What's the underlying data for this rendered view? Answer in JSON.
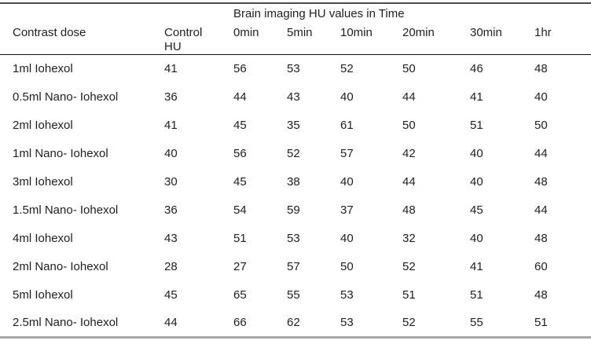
{
  "colors": {
    "text": "#1f1f1f",
    "top_border": "#4d4d4d",
    "header_rule": "#111111",
    "bottom_border": "#a6a6a6",
    "tick": "#7d7d7d",
    "page_bg": "#ffffff"
  },
  "table": {
    "title": "Brain imaging HU values in Time",
    "columns": [
      "Contrast dose",
      "Control\nHU",
      "0min",
      "5min",
      "10min",
      "20min",
      "30min",
      "1hr"
    ],
    "rows": [
      {
        "label": "1ml Iohexol",
        "values": [
          41,
          56,
          53,
          52,
          50,
          46,
          48
        ]
      },
      {
        "label": "0.5ml Nano- Iohexol",
        "values": [
          36,
          44,
          43,
          40,
          44,
          41,
          40
        ]
      },
      {
        "label": "2ml Iohexol",
        "values": [
          41,
          45,
          35,
          61,
          50,
          51,
          50
        ]
      },
      {
        "label": "1ml Nano- Iohexol",
        "values": [
          40,
          56,
          52,
          57,
          42,
          40,
          44
        ]
      },
      {
        "label": "3ml Iohexol",
        "values": [
          30,
          45,
          38,
          40,
          44,
          40,
          48
        ]
      },
      {
        "label": "1.5ml Nano- Iohexol",
        "values": [
          36,
          54,
          59,
          37,
          48,
          45,
          44
        ]
      },
      {
        "label": "4ml Iohexol",
        "values": [
          43,
          51,
          53,
          40,
          32,
          40,
          48
        ]
      },
      {
        "label": "2ml Nano- Iohexol",
        "values": [
          28,
          27,
          57,
          50,
          52,
          41,
          60
        ]
      },
      {
        "label": "5ml Iohexol",
        "values": [
          45,
          65,
          55,
          53,
          51,
          51,
          48
        ]
      },
      {
        "label": "2.5ml Nano- Iohexol",
        "values": [
          44,
          66,
          62,
          53,
          52,
          55,
          51
        ]
      }
    ]
  }
}
